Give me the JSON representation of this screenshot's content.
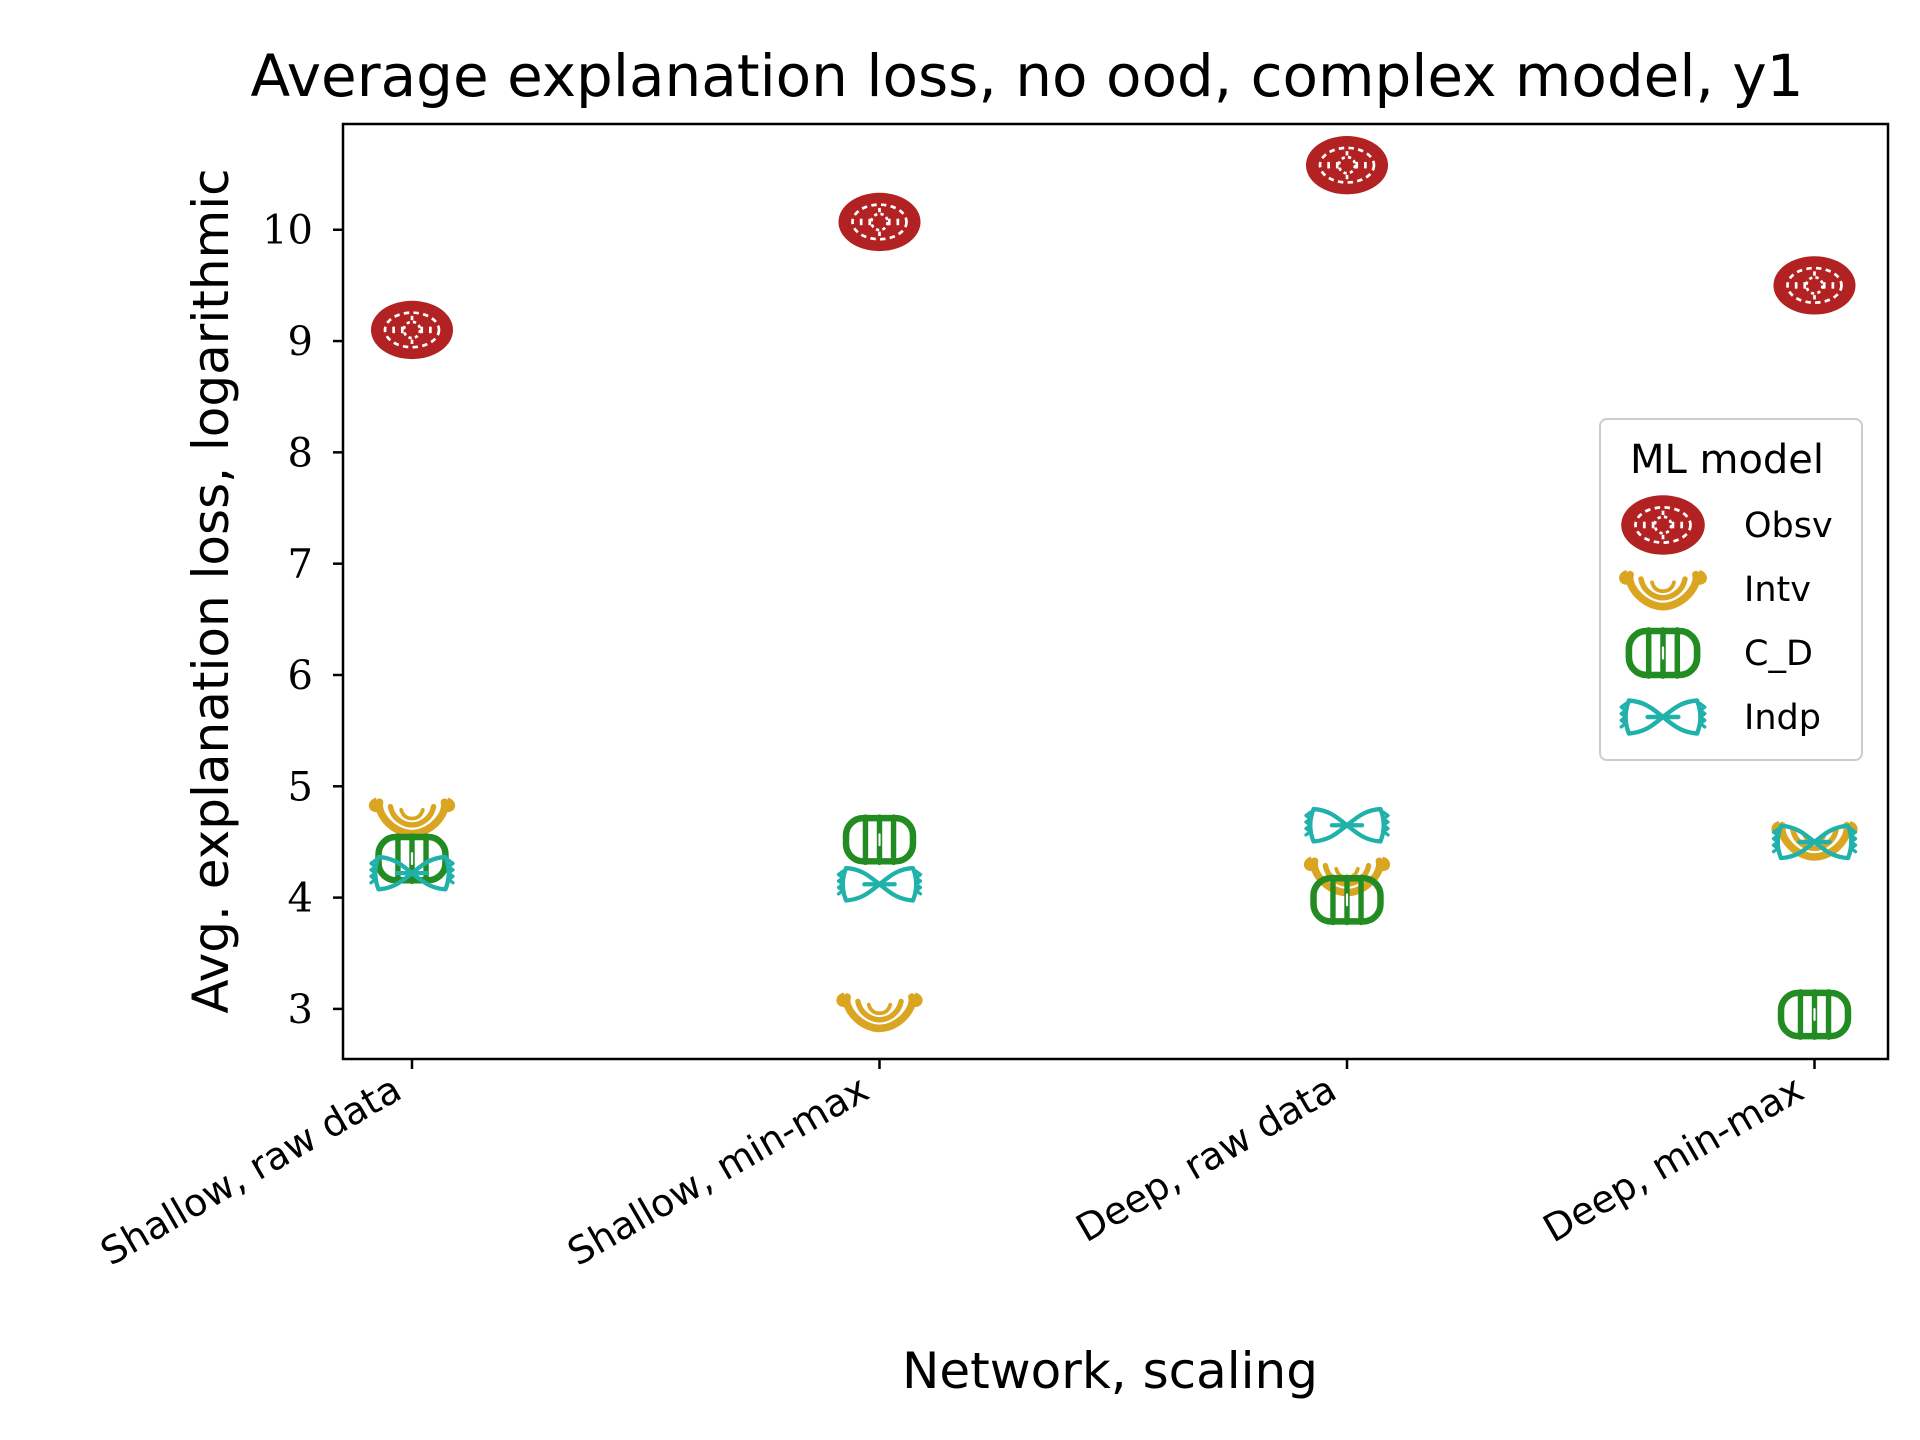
{
  "chart_data": {
    "type": "scatter",
    "title": "Average explanation loss, no ood, complex model, y1",
    "xlabel": "Network, scaling",
    "ylabel": "Avg. explanation loss, logarithmic",
    "categories": [
      "Shallow, raw data",
      "Shallow, min-max",
      "Deep, raw data",
      "Deep, min-max"
    ],
    "y_ticks": [
      "3",
      "4",
      "5",
      "6",
      "7",
      "8",
      "9",
      "10"
    ],
    "ylim": [
      2.55,
      10.95
    ],
    "grid": false,
    "legend": {
      "title": "ML model",
      "placement": "right"
    },
    "series": [
      {
        "name": "Obsv",
        "marker": "wheel",
        "color": "#b22222",
        "values": [
          9.1,
          10.07,
          10.58,
          9.5
        ]
      },
      {
        "name": "Intv",
        "marker": "arc",
        "color": "#daa520",
        "values": [
          4.73,
          2.98,
          4.2,
          4.52
        ]
      },
      {
        "name": "C_D",
        "marker": "barrel",
        "color": "#228b22",
        "values": [
          4.35,
          4.52,
          3.98,
          2.95
        ]
      },
      {
        "name": "Indp",
        "marker": "bowtie",
        "color": "#20b2aa",
        "values": [
          4.22,
          4.12,
          4.65,
          4.5
        ]
      }
    ]
  }
}
